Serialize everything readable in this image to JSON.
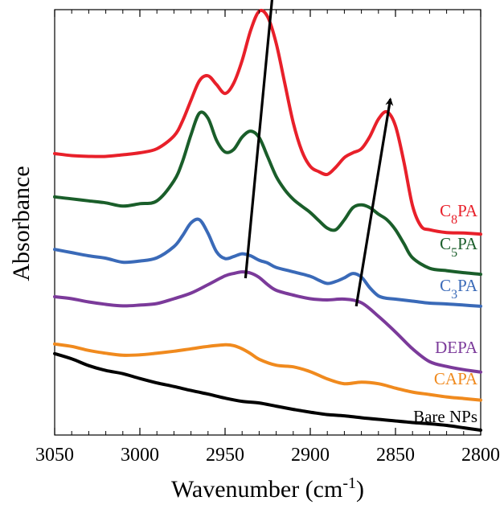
{
  "chart_data": {
    "type": "line",
    "title": "",
    "xlabel": "Wavenumber (cm",
    "xlabel_sup": "-1",
    "xlabel_close": ")",
    "ylabel": "Absorbance",
    "x_reversed": true,
    "xlim": [
      3050,
      2800
    ],
    "ylim": [
      0,
      100
    ],
    "y_tick_labels_shown": false,
    "grid": false,
    "xticks": [
      3050,
      3000,
      2950,
      2900,
      2850,
      2800
    ],
    "series": [
      {
        "name": "C8PA",
        "label_parts": [
          {
            "t": "C"
          },
          {
            "t": "8",
            "sub": true
          },
          {
            "t": "PA"
          }
        ],
        "color": "#e8202a",
        "x": [
          3050,
          3040,
          3030,
          3020,
          3010,
          3000,
          2990,
          2980,
          2975,
          2970,
          2965,
          2960,
          2955,
          2950,
          2945,
          2940,
          2935,
          2930,
          2925,
          2920,
          2915,
          2910,
          2905,
          2900,
          2895,
          2890,
          2885,
          2880,
          2875,
          2870,
          2865,
          2860,
          2855,
          2850,
          2845,
          2840,
          2835,
          2830,
          2820,
          2810,
          2800
        ],
        "values": [
          67.1,
          66.6,
          66.4,
          66.4,
          66.8,
          67.3,
          68.3,
          71.5,
          75.2,
          80.4,
          85.3,
          86.5,
          84.3,
          82.1,
          84.6,
          90.3,
          97.8,
          102.6,
          101.2,
          94.6,
          84.7,
          74.8,
          67.8,
          63.9,
          62.6,
          61.9,
          63.7,
          66.1,
          67.3,
          68.3,
          71.4,
          75.7,
          77.5,
          74.0,
          64.9,
          54.1,
          49.0,
          48.1,
          47.4,
          47.3,
          47.0
        ]
      },
      {
        "name": "C5PA",
        "label_parts": [
          {
            "t": "C"
          },
          {
            "t": "5",
            "sub": true
          },
          {
            "t": "PA"
          }
        ],
        "color": "#1a5e2a",
        "x": [
          3050,
          3040,
          3030,
          3020,
          3010,
          3000,
          2990,
          2980,
          2975,
          2970,
          2965,
          2960,
          2955,
          2950,
          2945,
          2940,
          2935,
          2930,
          2925,
          2920,
          2915,
          2910,
          2905,
          2900,
          2895,
          2890,
          2885,
          2880,
          2875,
          2870,
          2865,
          2860,
          2855,
          2850,
          2845,
          2840,
          2830,
          2820,
          2810,
          2800
        ],
        "values": [
          56.3,
          55.8,
          55.3,
          54.8,
          54.0,
          54.6,
          55.3,
          60.3,
          65.1,
          71.8,
          77.2,
          75.9,
          70.4,
          67.5,
          68.1,
          71.2,
          72.7,
          71.1,
          66.3,
          61.4,
          58.1,
          55.7,
          54.0,
          52.4,
          50.4,
          48.5,
          48.1,
          50.6,
          53.6,
          54.3,
          53.6,
          52.0,
          50.6,
          48.1,
          44.6,
          41.1,
          38.5,
          37.9,
          37.4,
          37.0
        ]
      },
      {
        "name": "C3PA",
        "label_parts": [
          {
            "t": "C"
          },
          {
            "t": "3",
            "sub": true
          },
          {
            "t": "PA"
          }
        ],
        "color": "#3a6ab8",
        "x": [
          3050,
          3040,
          3030,
          3020,
          3010,
          3000,
          2990,
          2980,
          2975,
          2970,
          2965,
          2960,
          2955,
          2950,
          2945,
          2940,
          2935,
          2930,
          2925,
          2920,
          2910,
          2900,
          2895,
          2890,
          2885,
          2880,
          2875,
          2870,
          2865,
          2860,
          2855,
          2850,
          2840,
          2830,
          2820,
          2810,
          2800
        ],
        "values": [
          43.2,
          42.4,
          41.6,
          41.0,
          40.0,
          40.3,
          41.1,
          43.9,
          46.6,
          49.8,
          50.6,
          47.2,
          42.6,
          40.9,
          41.4,
          42.1,
          41.6,
          40.5,
          39.8,
          38.7,
          37.6,
          36.5,
          35.5,
          34.7,
          35.2,
          36.1,
          37.2,
          36.3,
          33.6,
          31.6,
          31.0,
          30.8,
          30.3,
          29.8,
          29.6,
          29.3,
          29.0
        ]
      },
      {
        "name": "DEPA",
        "label_parts": [
          {
            "t": "DEPA"
          }
        ],
        "color": "#7b3a9a",
        "x": [
          3050,
          3040,
          3030,
          3020,
          3010,
          3000,
          2990,
          2980,
          2970,
          2960,
          2950,
          2945,
          2940,
          2935,
          2930,
          2925,
          2920,
          2910,
          2900,
          2890,
          2880,
          2870,
          2860,
          2850,
          2840,
          2830,
          2820,
          2810,
          2800
        ],
        "values": [
          31.4,
          30.9,
          30.1,
          29.5,
          29.1,
          29.3,
          29.7,
          30.9,
          32.3,
          34.4,
          36.6,
          37.2,
          37.6,
          37.3,
          36.2,
          34.4,
          33.0,
          31.8,
          30.9,
          30.6,
          30.8,
          29.9,
          26.5,
          22.6,
          18.4,
          15.2,
          14.0,
          13.2,
          12.6
        ]
      },
      {
        "name": "CAPA",
        "label_parts": [
          {
            "t": "CAPA"
          }
        ],
        "color": "#f08a1e",
        "x": [
          3050,
          3040,
          3030,
          3020,
          3010,
          3000,
          2990,
          2980,
          2970,
          2960,
          2950,
          2945,
          2940,
          2935,
          2930,
          2920,
          2910,
          2900,
          2890,
          2880,
          2870,
          2860,
          2850,
          2840,
          2830,
          2820,
          2810,
          2800
        ],
        "values": [
          19.6,
          19.0,
          18.0,
          17.3,
          16.8,
          16.9,
          17.3,
          17.8,
          18.4,
          19.0,
          19.4,
          19.2,
          18.4,
          17.2,
          15.8,
          14.3,
          13.9,
          12.7,
          10.9,
          9.7,
          10.1,
          9.7,
          8.6,
          7.6,
          7.0,
          6.4,
          6.0,
          5.6
        ]
      },
      {
        "name": "Bare NPs",
        "label_parts": [
          {
            "t": "Bare NPs"
          }
        ],
        "color": "#000000",
        "x": [
          3050,
          3040,
          3030,
          3020,
          3010,
          3000,
          2990,
          2980,
          2970,
          2960,
          2950,
          2940,
          2930,
          2920,
          2910,
          2900,
          2890,
          2880,
          2870,
          2860,
          2850,
          2840,
          2830,
          2820,
          2810,
          2800
        ],
        "values": [
          17.2,
          15.9,
          14.2,
          13.0,
          12.2,
          11.0,
          9.9,
          9.0,
          8.0,
          7.1,
          6.1,
          5.3,
          4.9,
          4.1,
          3.3,
          2.6,
          2.0,
          1.7,
          1.2,
          0.8,
          0.4,
          0.0,
          -0.3,
          -0.7,
          -1.3,
          -1.9
        ]
      }
    ],
    "arrows": [
      {
        "from": [
          2938,
          36.0
        ],
        "to": [
          2922,
          107.5
        ],
        "color": "#000000"
      },
      {
        "from": [
          2873,
          29.0
        ],
        "to": [
          2853,
          80.7
        ],
        "color": "#000000"
      }
    ]
  }
}
